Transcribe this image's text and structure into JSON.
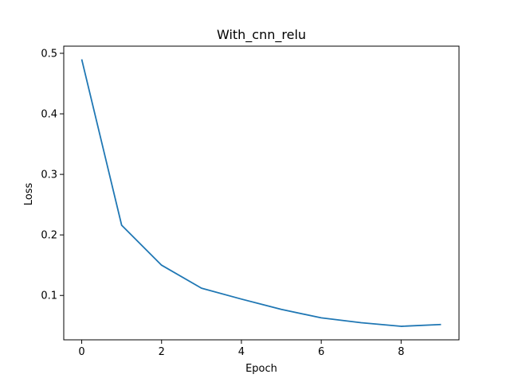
{
  "chart_data": {
    "type": "line",
    "title": "With_cnn_relu",
    "xlabel": "Epoch",
    "ylabel": "Loss",
    "xlim": [
      -0.45,
      9.45
    ],
    "ylim": [
      0.0267,
      0.5118
    ],
    "xticks": [
      0,
      2,
      4,
      6,
      8
    ],
    "yticks": [
      0.1,
      0.2,
      0.3,
      0.4,
      0.5
    ],
    "grid": false,
    "series": [
      {
        "color": "#1f77b4",
        "x": [
          0,
          1,
          2,
          3,
          4,
          5,
          6,
          7,
          8,
          9
        ],
        "y": [
          0.49,
          0.216,
          0.15,
          0.112,
          0.094,
          0.077,
          0.063,
          0.055,
          0.049,
          0.052
        ]
      }
    ]
  }
}
